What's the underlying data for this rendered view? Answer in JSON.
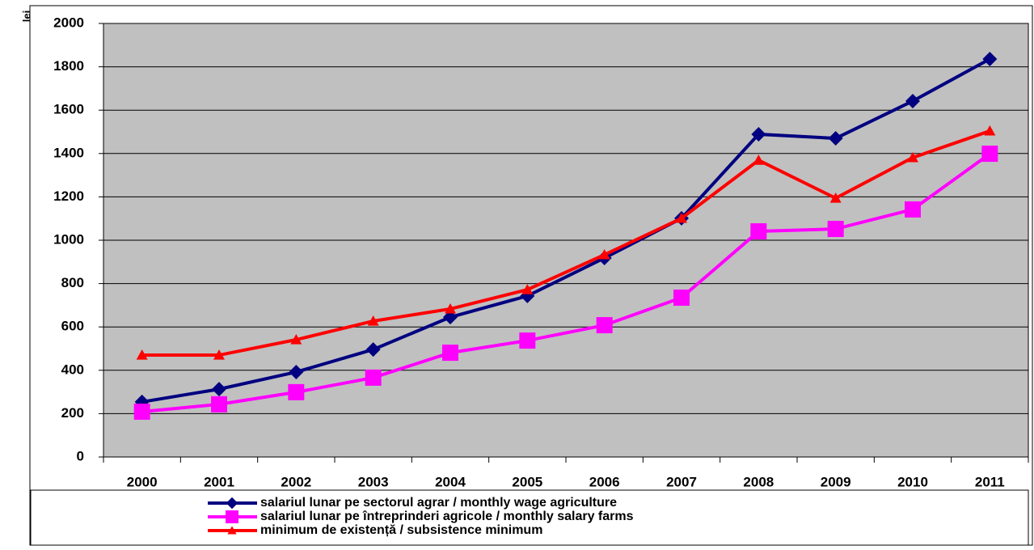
{
  "chart_data": {
    "type": "line",
    "y_label": "lei",
    "categories": [
      "2000",
      "2001",
      "2002",
      "2003",
      "2004",
      "2005",
      "2006",
      "2007",
      "2008",
      "2009",
      "2010",
      "2011"
    ],
    "series": [
      {
        "name": "salariul lunar pe sectorul agrar / monthly wage agriculture",
        "color": "#000080",
        "marker": "diamond",
        "values": [
          254,
          313,
          392,
          496,
          645,
          743,
          918,
          1101,
          1489,
          1470,
          1642,
          1836
        ]
      },
      {
        "name": "salariul lunar pe întreprinderi agricole / monthly salary farms",
        "color": "#ff00ff",
        "marker": "square",
        "values": [
          209,
          243,
          299,
          366,
          481,
          537,
          608,
          735,
          1041,
          1052,
          1142,
          1399
        ]
      },
      {
        "name": "minimum de existență / subsistence minimum",
        "color": "#ff0000",
        "marker": "triangle",
        "values": [
          470,
          470,
          541,
          627,
          683,
          772,
          933,
          1101,
          1369,
          1194,
          1381,
          1504
        ]
      }
    ],
    "ylim": [
      0,
      2000
    ],
    "yticks": [
      0,
      200,
      400,
      600,
      800,
      1000,
      1200,
      1400,
      1600,
      1800,
      2000
    ],
    "grid": true,
    "legend": "bottom"
  }
}
